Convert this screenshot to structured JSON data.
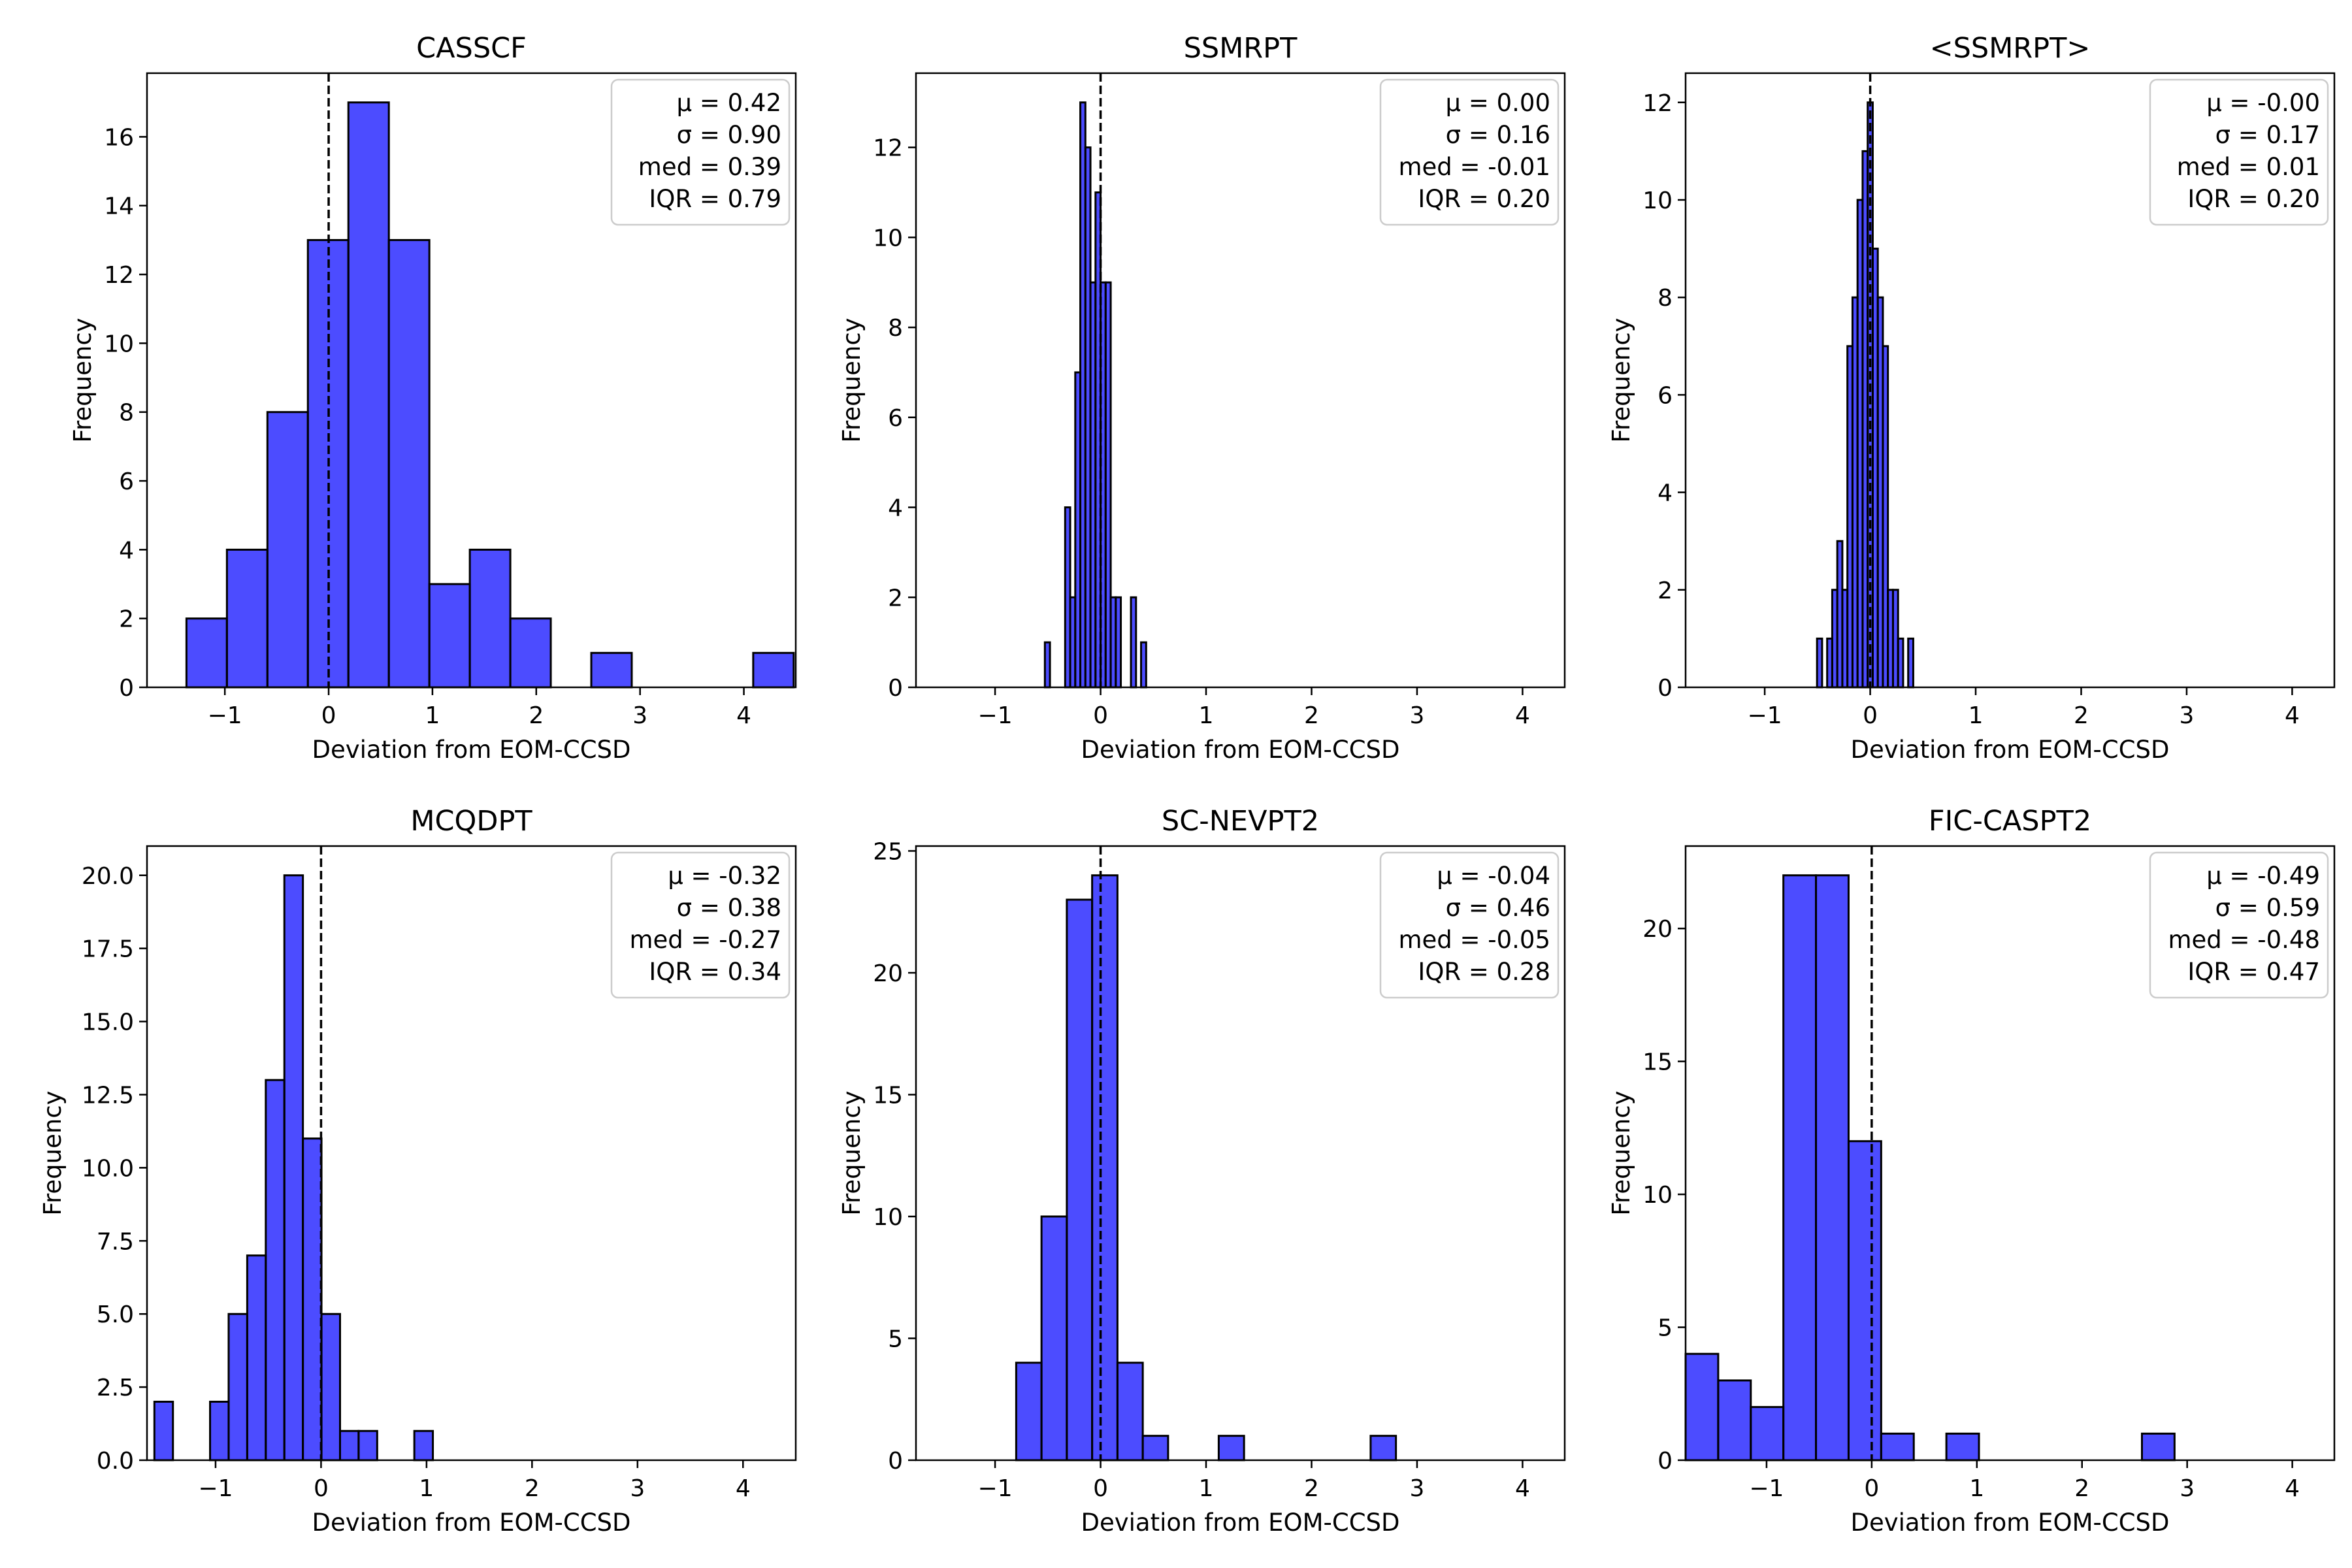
{
  "colors": {
    "bar_fill": "#0000ff",
    "bar_opacity": 0.7,
    "bar_edge": "#000000",
    "zero_line": "#000000"
  },
  "chart_data": [
    {
      "type": "bar",
      "title": "CASSCF",
      "xlabel": "Deviation from EOM-CCSD",
      "ylabel": "Frequency",
      "xlim": [
        -1.75,
        4.5
      ],
      "ylim": [
        0,
        17.85
      ],
      "xticks": [
        -1,
        0,
        1,
        2,
        3,
        4
      ],
      "yticks": [
        0,
        2,
        4,
        6,
        8,
        10,
        12,
        14,
        16
      ],
      "ytick_labels": [
        "0",
        "2",
        "4",
        "6",
        "8",
        "10",
        "12",
        "14",
        "16"
      ],
      "bin_width": 0.39,
      "bins": [
        {
          "x0": -1.37,
          "count": 2
        },
        {
          "x0": -0.98,
          "count": 4
        },
        {
          "x0": -0.59,
          "count": 8
        },
        {
          "x0": -0.2,
          "count": 13
        },
        {
          "x0": 0.19,
          "count": 17
        },
        {
          "x0": 0.58,
          "count": 13
        },
        {
          "x0": 0.97,
          "count": 3
        },
        {
          "x0": 1.36,
          "count": 4
        },
        {
          "x0": 1.75,
          "count": 2
        },
        {
          "x0": 2.53,
          "count": 1
        },
        {
          "x0": 4.09,
          "count": 1
        }
      ],
      "zero_line": true,
      "stats": [
        "μ = 0.42",
        "σ = 0.90",
        "med = 0.39",
        "IQR = 0.79"
      ],
      "legend_position": "top-right"
    },
    {
      "type": "bar",
      "title": "SSMRPT",
      "xlabel": "Deviation from EOM-CCSD",
      "ylabel": "Frequency",
      "xlim": [
        -1.75,
        4.4
      ],
      "ylim": [
        0,
        13.65
      ],
      "xticks": [
        -1,
        0,
        1,
        2,
        3,
        4
      ],
      "yticks": [
        0,
        2,
        4,
        6,
        8,
        10,
        12
      ],
      "ytick_labels": [
        "0",
        "2",
        "4",
        "6",
        "8",
        "10",
        "12"
      ],
      "bin_width": 0.048,
      "bins": [
        {
          "x0": -0.528,
          "count": 1
        },
        {
          "x0": -0.336,
          "count": 4
        },
        {
          "x0": -0.288,
          "count": 2
        },
        {
          "x0": -0.24,
          "count": 7
        },
        {
          "x0": -0.192,
          "count": 13
        },
        {
          "x0": -0.144,
          "count": 12
        },
        {
          "x0": -0.096,
          "count": 9
        },
        {
          "x0": -0.048,
          "count": 11
        },
        {
          "x0": 0.0,
          "count": 9
        },
        {
          "x0": 0.048,
          "count": 9
        },
        {
          "x0": 0.096,
          "count": 2
        },
        {
          "x0": 0.144,
          "count": 2
        },
        {
          "x0": 0.288,
          "count": 2
        },
        {
          "x0": 0.384,
          "count": 1
        }
      ],
      "zero_line": true,
      "stats": [
        "μ = 0.00",
        "σ = 0.16",
        "med = -0.01",
        "IQR = 0.20"
      ],
      "legend_position": "top-right"
    },
    {
      "type": "bar",
      "title": "<SSMRPT>",
      "xlabel": "Deviation from EOM-CCSD",
      "ylabel": "Frequency",
      "xlim": [
        -1.75,
        4.4
      ],
      "ylim": [
        0,
        12.6
      ],
      "xticks": [
        -1,
        0,
        1,
        2,
        3,
        4
      ],
      "yticks": [
        0,
        2,
        4,
        6,
        8,
        10,
        12
      ],
      "ytick_labels": [
        "0",
        "2",
        "4",
        "6",
        "8",
        "10",
        "12"
      ],
      "bin_width": 0.048,
      "bins": [
        {
          "x0": -0.504,
          "count": 1
        },
        {
          "x0": -0.408,
          "count": 1
        },
        {
          "x0": -0.36,
          "count": 2
        },
        {
          "x0": -0.312,
          "count": 3
        },
        {
          "x0": -0.264,
          "count": 2
        },
        {
          "x0": -0.216,
          "count": 7
        },
        {
          "x0": -0.168,
          "count": 8
        },
        {
          "x0": -0.12,
          "count": 10
        },
        {
          "x0": -0.072,
          "count": 11
        },
        {
          "x0": -0.024,
          "count": 12
        },
        {
          "x0": 0.024,
          "count": 9
        },
        {
          "x0": 0.072,
          "count": 8
        },
        {
          "x0": 0.12,
          "count": 7
        },
        {
          "x0": 0.168,
          "count": 2
        },
        {
          "x0": 0.216,
          "count": 2
        },
        {
          "x0": 0.264,
          "count": 1
        },
        {
          "x0": 0.36,
          "count": 1
        }
      ],
      "zero_line": true,
      "stats": [
        "μ = -0.00",
        "σ = 0.17",
        "med = 0.01",
        "IQR = 0.20"
      ],
      "legend_position": "top-right"
    },
    {
      "type": "bar",
      "title": "MCQDPT",
      "xlabel": "Deviation from EOM-CCSD",
      "ylabel": "Frequency",
      "xlim": [
        -1.65,
        4.5
      ],
      "ylim": [
        0,
        21.0
      ],
      "xticks": [
        -1,
        0,
        1,
        2,
        3,
        4
      ],
      "yticks": [
        0,
        2.5,
        5,
        7.5,
        10,
        12.5,
        15,
        17.5,
        20
      ],
      "ytick_labels": [
        "0.0",
        "2.5",
        "5.0",
        "7.5",
        "10.0",
        "12.5",
        "15.0",
        "17.5",
        "20.0"
      ],
      "bin_width": 0.176,
      "bins": [
        {
          "x0": -1.58,
          "count": 2
        },
        {
          "x0": -1.052,
          "count": 2
        },
        {
          "x0": -0.876,
          "count": 5
        },
        {
          "x0": -0.7,
          "count": 7
        },
        {
          "x0": -0.524,
          "count": 13
        },
        {
          "x0": -0.348,
          "count": 20
        },
        {
          "x0": -0.172,
          "count": 11
        },
        {
          "x0": 0.004,
          "count": 5
        },
        {
          "x0": 0.18,
          "count": 1
        },
        {
          "x0": 0.356,
          "count": 1
        },
        {
          "x0": 0.884,
          "count": 1
        }
      ],
      "zero_line": true,
      "stats": [
        "μ = -0.32",
        "σ = 0.38",
        "med = -0.27",
        "IQR = 0.34"
      ],
      "legend_position": "top-right"
    },
    {
      "type": "bar",
      "title": "SC-NEVPT2",
      "xlabel": "Deviation from EOM-CCSD",
      "ylabel": "Frequency",
      "xlim": [
        -1.75,
        4.4
      ],
      "ylim": [
        0,
        25.2
      ],
      "xticks": [
        -1,
        0,
        1,
        2,
        3,
        4
      ],
      "yticks": [
        0,
        5,
        10,
        15,
        20,
        25
      ],
      "ytick_labels": [
        "0",
        "5",
        "10",
        "15",
        "20",
        "25"
      ],
      "bin_width": 0.24,
      "bins": [
        {
          "x0": -0.8,
          "count": 4
        },
        {
          "x0": -0.56,
          "count": 10
        },
        {
          "x0": -0.32,
          "count": 23
        },
        {
          "x0": -0.08,
          "count": 24
        },
        {
          "x0": 0.16,
          "count": 4
        },
        {
          "x0": 0.4,
          "count": 1
        },
        {
          "x0": 1.12,
          "count": 1
        },
        {
          "x0": 2.56,
          "count": 1
        }
      ],
      "zero_line": true,
      "stats": [
        "μ = -0.04",
        "σ = 0.46",
        "med = -0.05",
        "IQR = 0.28"
      ],
      "legend_position": "top-right"
    },
    {
      "type": "bar",
      "title": "FIC-CASPT2",
      "xlabel": "Deviation from EOM-CCSD",
      "ylabel": "Frequency",
      "xlim": [
        -1.77,
        4.4
      ],
      "ylim": [
        0,
        23.1
      ],
      "xticks": [
        -1,
        0,
        1,
        2,
        3,
        4
      ],
      "yticks": [
        0,
        5,
        10,
        15,
        20
      ],
      "ytick_labels": [
        "0",
        "5",
        "10",
        "15",
        "20"
      ],
      "bin_width": 0.31,
      "bins": [
        {
          "x0": -1.77,
          "count": 4
        },
        {
          "x0": -1.46,
          "count": 3
        },
        {
          "x0": -1.15,
          "count": 2
        },
        {
          "x0": -0.84,
          "count": 22
        },
        {
          "x0": -0.53,
          "count": 22
        },
        {
          "x0": -0.22,
          "count": 12
        },
        {
          "x0": 0.09,
          "count": 1
        },
        {
          "x0": 0.71,
          "count": 1
        },
        {
          "x0": 2.57,
          "count": 1
        }
      ],
      "zero_line": true,
      "stats": [
        "μ = -0.49",
        "σ = 0.59",
        "med = -0.48",
        "IQR = 0.47"
      ],
      "legend_position": "top-right"
    }
  ]
}
